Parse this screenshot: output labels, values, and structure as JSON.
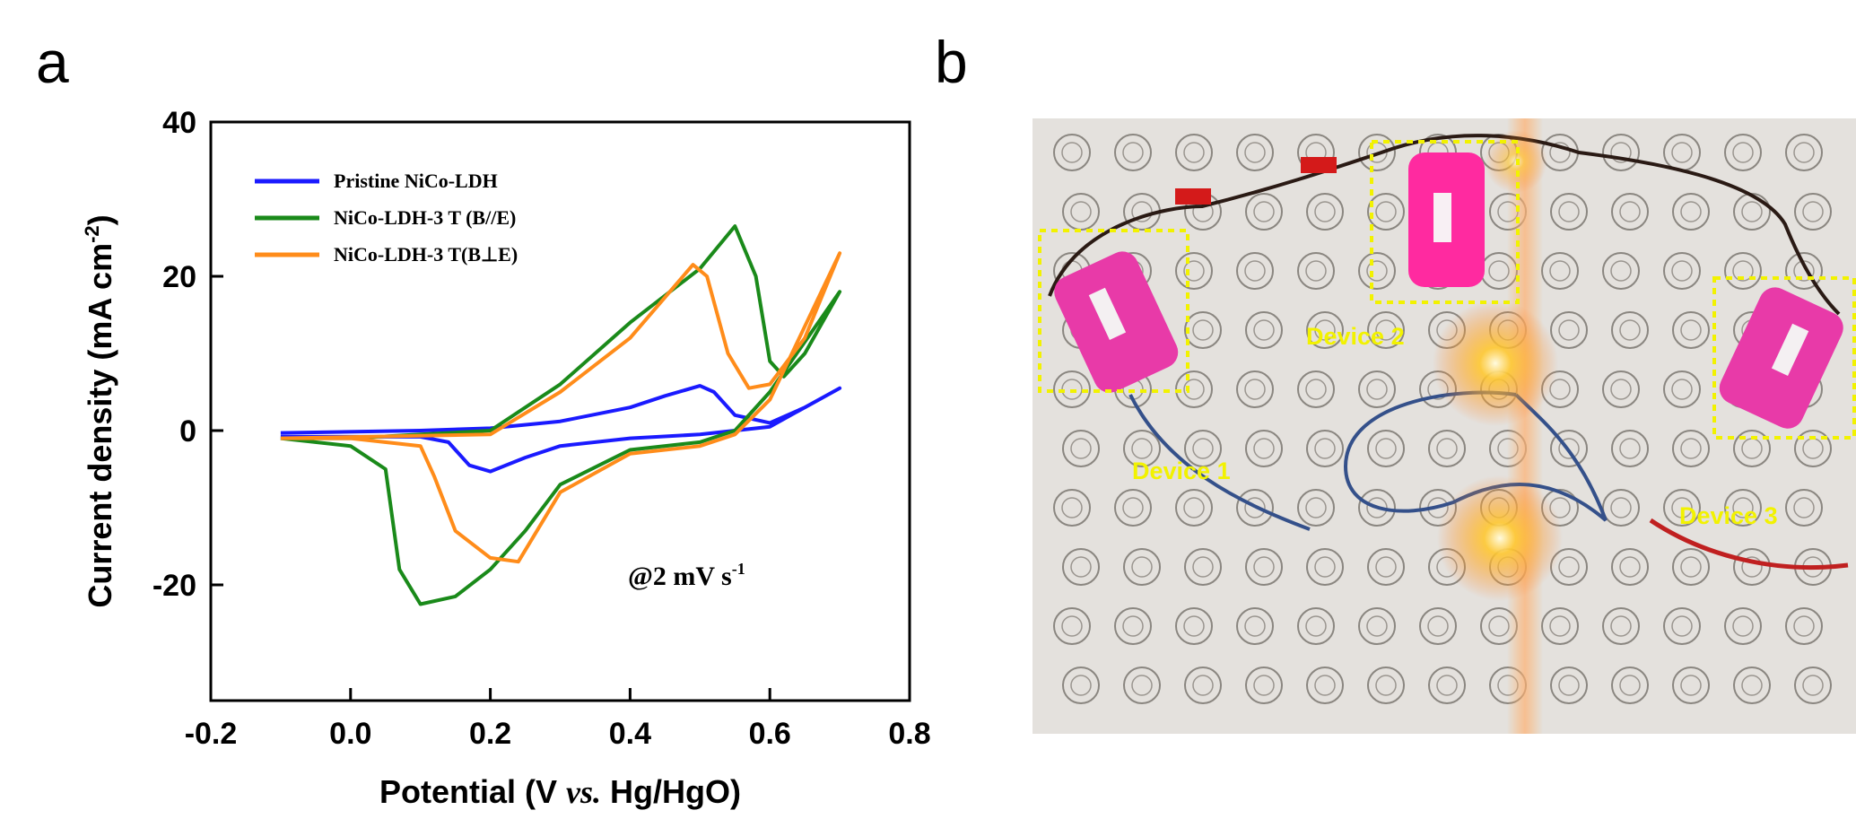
{
  "chart_data": {
    "type": "line",
    "panel_label": "a",
    "ylabel": {
      "text": "Current density (mA cm",
      "sup": "-2",
      "end": ")"
    },
    "xlabel": {
      "text": "Potential (V ",
      "italic": "vs.",
      "end": " Hg/HgO)"
    },
    "annotation": {
      "text": "@2 mV s",
      "sup": "-1"
    },
    "xlim": [
      -0.2,
      0.8
    ],
    "ylim": [
      -35,
      40
    ],
    "xticks": [
      -0.2,
      {
        "value": 0,
        "label": "0.0"
      },
      0.2,
      0.4,
      0.6,
      0.8
    ],
    "yticks": [
      40,
      20,
      0,
      -20
    ],
    "legend": "upper left",
    "series": [
      {
        "name": "Pristine NiCo-LDH",
        "color": "#1a1aff",
        "x": [
          -0.1,
          0.1,
          0.2,
          0.3,
          0.4,
          0.45,
          0.5,
          0.52,
          0.55,
          0.6,
          0.65,
          0.7,
          0.6,
          0.5,
          0.4,
          0.3,
          0.25,
          0.2,
          0.17,
          0.14,
          0.1,
          0.0,
          -0.1
        ],
        "values": [
          -0.3,
          0,
          0.3,
          1.2,
          3,
          4.5,
          5.8,
          5,
          2,
          1,
          3,
          5.5,
          0.5,
          -0.5,
          -1,
          -2,
          -3.5,
          -5.3,
          -4.5,
          -1.5,
          -0.8,
          -0.8,
          -0.8
        ]
      },
      {
        "name": "NiCo-LDH-3 T (B//E)",
        "color": "#1a8a1a",
        "x": [
          -0.1,
          0.0,
          0.1,
          0.2,
          0.3,
          0.4,
          0.5,
          0.55,
          0.58,
          0.6,
          0.62,
          0.65,
          0.7,
          0.6,
          0.55,
          0.5,
          0.4,
          0.3,
          0.25,
          0.2,
          0.15,
          0.1,
          0.07,
          0.05,
          0.0,
          -0.1
        ],
        "values": [
          -1,
          -1,
          -0.5,
          0,
          6,
          14,
          21,
          26.5,
          20,
          9,
          7,
          10,
          18,
          5,
          0,
          -1.5,
          -2.5,
          -7,
          -13,
          -18,
          -21.5,
          -22.5,
          -18,
          -5,
          -2,
          -1
        ]
      },
      {
        "name": "NiCo-LDH-3 T(B⊥E)",
        "color": "#ff8c1a",
        "x": [
          -0.1,
          0.2,
          0.3,
          0.4,
          0.49,
          0.51,
          0.54,
          0.57,
          0.6,
          0.65,
          0.7,
          0.6,
          0.55,
          0.5,
          0.4,
          0.3,
          0.24,
          0.2,
          0.15,
          0.12,
          0.1,
          0.0,
          -0.1
        ],
        "values": [
          -1,
          -0.5,
          5,
          12,
          21.5,
          20,
          10,
          5.5,
          6,
          12,
          23,
          4,
          -0.5,
          -2,
          -3,
          -8,
          -17,
          -16.5,
          -13,
          -6,
          -2,
          -1,
          -1
        ]
      }
    ]
  },
  "photo": {
    "panel_label": "b",
    "labels": [
      "Device 1",
      "Device 2",
      "Device 3"
    ]
  }
}
